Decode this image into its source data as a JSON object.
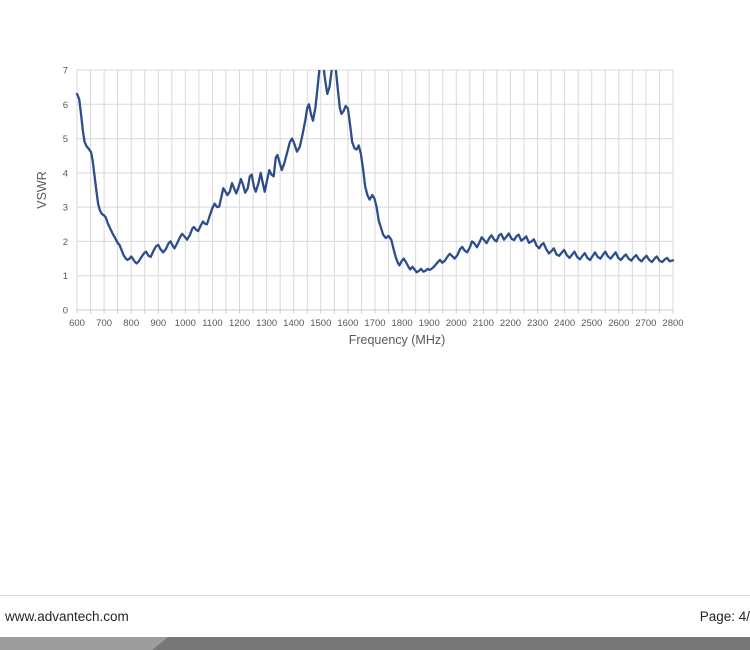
{
  "footer": {
    "website": "www.advantech.com",
    "page_label": "Page: 4/"
  },
  "footer_bar": {
    "light_color": "#9d9d9d",
    "dark_color": "#777777"
  },
  "chart_data": {
    "type": "line",
    "title": "",
    "xlabel": "Frequency (MHz)",
    "ylabel": "VSWR",
    "xlim": [
      600,
      2800
    ],
    "ylim": [
      0,
      7
    ],
    "x_ticks": [
      600,
      700,
      800,
      900,
      1000,
      1100,
      1200,
      1300,
      1400,
      1500,
      1600,
      1700,
      1800,
      1900,
      2000,
      2100,
      2200,
      2300,
      2400,
      2500,
      2600,
      2700,
      2800
    ],
    "y_ticks": [
      0,
      1,
      2,
      3,
      4,
      5,
      6,
      7
    ],
    "x_minor_grid_mhz": 50,
    "grid": true,
    "legend": "none",
    "line_color": "#2e4d8b",
    "grid_color": "#d9d9d9",
    "axis_color": "#c9c9c9",
    "tick_label_color": "#595959",
    "note": "curve is clipped at VSWR 7 near 1500-1560 MHz",
    "series": [
      {
        "name": "VSWR",
        "points": [
          [
            600,
            6.3
          ],
          [
            608,
            6.15
          ],
          [
            615,
            5.7
          ],
          [
            622,
            5.2
          ],
          [
            628,
            4.9
          ],
          [
            635,
            4.78
          ],
          [
            645,
            4.68
          ],
          [
            652,
            4.6
          ],
          [
            658,
            4.35
          ],
          [
            665,
            3.9
          ],
          [
            672,
            3.45
          ],
          [
            678,
            3.1
          ],
          [
            685,
            2.9
          ],
          [
            692,
            2.8
          ],
          [
            700,
            2.76
          ],
          [
            706,
            2.7
          ],
          [
            714,
            2.52
          ],
          [
            722,
            2.38
          ],
          [
            732,
            2.22
          ],
          [
            742,
            2.08
          ],
          [
            750,
            1.96
          ],
          [
            757,
            1.9
          ],
          [
            764,
            1.76
          ],
          [
            772,
            1.6
          ],
          [
            780,
            1.5
          ],
          [
            786,
            1.46
          ],
          [
            794,
            1.5
          ],
          [
            800,
            1.56
          ],
          [
            806,
            1.5
          ],
          [
            814,
            1.4
          ],
          [
            820,
            1.36
          ],
          [
            828,
            1.42
          ],
          [
            838,
            1.55
          ],
          [
            848,
            1.66
          ],
          [
            855,
            1.7
          ],
          [
            864,
            1.58
          ],
          [
            872,
            1.55
          ],
          [
            882,
            1.72
          ],
          [
            892,
            1.86
          ],
          [
            900,
            1.9
          ],
          [
            908,
            1.78
          ],
          [
            918,
            1.68
          ],
          [
            928,
            1.78
          ],
          [
            938,
            1.95
          ],
          [
            945,
            2.0
          ],
          [
            953,
            1.88
          ],
          [
            960,
            1.8
          ],
          [
            970,
            1.95
          ],
          [
            980,
            2.12
          ],
          [
            988,
            2.22
          ],
          [
            997,
            2.14
          ],
          [
            1006,
            2.05
          ],
          [
            1016,
            2.18
          ],
          [
            1026,
            2.38
          ],
          [
            1032,
            2.42
          ],
          [
            1040,
            2.34
          ],
          [
            1047,
            2.3
          ],
          [
            1056,
            2.45
          ],
          [
            1065,
            2.58
          ],
          [
            1072,
            2.52
          ],
          [
            1080,
            2.5
          ],
          [
            1090,
            2.75
          ],
          [
            1100,
            2.98
          ],
          [
            1108,
            3.1
          ],
          [
            1117,
            3.0
          ],
          [
            1125,
            3.02
          ],
          [
            1133,
            3.3
          ],
          [
            1140,
            3.55
          ],
          [
            1148,
            3.45
          ],
          [
            1155,
            3.35
          ],
          [
            1164,
            3.45
          ],
          [
            1172,
            3.7
          ],
          [
            1180,
            3.55
          ],
          [
            1188,
            3.4
          ],
          [
            1197,
            3.6
          ],
          [
            1205,
            3.82
          ],
          [
            1213,
            3.65
          ],
          [
            1221,
            3.42
          ],
          [
            1230,
            3.55
          ],
          [
            1238,
            3.9
          ],
          [
            1245,
            3.95
          ],
          [
            1253,
            3.6
          ],
          [
            1260,
            3.45
          ],
          [
            1270,
            3.7
          ],
          [
            1278,
            4.0
          ],
          [
            1286,
            3.7
          ],
          [
            1293,
            3.45
          ],
          [
            1302,
            3.8
          ],
          [
            1310,
            4.08
          ],
          [
            1318,
            3.95
          ],
          [
            1326,
            3.9
          ],
          [
            1334,
            4.45
          ],
          [
            1340,
            4.52
          ],
          [
            1348,
            4.3
          ],
          [
            1356,
            4.08
          ],
          [
            1366,
            4.3
          ],
          [
            1376,
            4.6
          ],
          [
            1386,
            4.9
          ],
          [
            1394,
            5.0
          ],
          [
            1402,
            4.85
          ],
          [
            1412,
            4.62
          ],
          [
            1422,
            4.75
          ],
          [
            1432,
            5.1
          ],
          [
            1442,
            5.5
          ],
          [
            1450,
            5.9
          ],
          [
            1456,
            6.0
          ],
          [
            1464,
            5.7
          ],
          [
            1471,
            5.52
          ],
          [
            1480,
            5.9
          ],
          [
            1488,
            6.5
          ],
          [
            1496,
            7.1
          ],
          [
            1502,
            7.3
          ],
          [
            1508,
            7.2
          ],
          [
            1516,
            6.7
          ],
          [
            1524,
            6.3
          ],
          [
            1532,
            6.5
          ],
          [
            1540,
            7.0
          ],
          [
            1547,
            7.3
          ],
          [
            1554,
            7.15
          ],
          [
            1562,
            6.5
          ],
          [
            1570,
            5.9
          ],
          [
            1576,
            5.72
          ],
          [
            1584,
            5.8
          ],
          [
            1592,
            5.95
          ],
          [
            1600,
            5.88
          ],
          [
            1608,
            5.4
          ],
          [
            1616,
            4.9
          ],
          [
            1624,
            4.72
          ],
          [
            1632,
            4.68
          ],
          [
            1640,
            4.8
          ],
          [
            1648,
            4.55
          ],
          [
            1656,
            4.1
          ],
          [
            1664,
            3.6
          ],
          [
            1672,
            3.35
          ],
          [
            1680,
            3.22
          ],
          [
            1690,
            3.35
          ],
          [
            1698,
            3.25
          ],
          [
            1706,
            3.0
          ],
          [
            1714,
            2.6
          ],
          [
            1722,
            2.4
          ],
          [
            1730,
            2.2
          ],
          [
            1740,
            2.1
          ],
          [
            1750,
            2.16
          ],
          [
            1760,
            2.05
          ],
          [
            1768,
            1.8
          ],
          [
            1776,
            1.55
          ],
          [
            1784,
            1.38
          ],
          [
            1790,
            1.3
          ],
          [
            1798,
            1.42
          ],
          [
            1806,
            1.5
          ],
          [
            1814,
            1.4
          ],
          [
            1822,
            1.28
          ],
          [
            1830,
            1.18
          ],
          [
            1838,
            1.26
          ],
          [
            1846,
            1.18
          ],
          [
            1854,
            1.1
          ],
          [
            1862,
            1.14
          ],
          [
            1870,
            1.2
          ],
          [
            1878,
            1.12
          ],
          [
            1886,
            1.14
          ],
          [
            1894,
            1.2
          ],
          [
            1902,
            1.17
          ],
          [
            1912,
            1.22
          ],
          [
            1922,
            1.3
          ],
          [
            1932,
            1.4
          ],
          [
            1940,
            1.46
          ],
          [
            1948,
            1.38
          ],
          [
            1958,
            1.44
          ],
          [
            1968,
            1.56
          ],
          [
            1976,
            1.64
          ],
          [
            1984,
            1.58
          ],
          [
            1994,
            1.5
          ],
          [
            2004,
            1.6
          ],
          [
            2014,
            1.78
          ],
          [
            2022,
            1.84
          ],
          [
            2030,
            1.74
          ],
          [
            2040,
            1.68
          ],
          [
            2050,
            1.82
          ],
          [
            2058,
            2.0
          ],
          [
            2066,
            1.95
          ],
          [
            2076,
            1.83
          ],
          [
            2086,
            1.98
          ],
          [
            2094,
            2.12
          ],
          [
            2102,
            2.05
          ],
          [
            2112,
            1.95
          ],
          [
            2122,
            2.1
          ],
          [
            2130,
            2.18
          ],
          [
            2140,
            2.05
          ],
          [
            2148,
            2.0
          ],
          [
            2158,
            2.18
          ],
          [
            2166,
            2.22
          ],
          [
            2176,
            2.05
          ],
          [
            2186,
            2.15
          ],
          [
            2194,
            2.23
          ],
          [
            2204,
            2.08
          ],
          [
            2214,
            2.04
          ],
          [
            2222,
            2.15
          ],
          [
            2230,
            2.2
          ],
          [
            2240,
            2.02
          ],
          [
            2250,
            2.08
          ],
          [
            2258,
            2.15
          ],
          [
            2268,
            1.96
          ],
          [
            2278,
            2.0
          ],
          [
            2286,
            2.06
          ],
          [
            2296,
            1.88
          ],
          [
            2306,
            1.8
          ],
          [
            2314,
            1.9
          ],
          [
            2322,
            1.95
          ],
          [
            2332,
            1.78
          ],
          [
            2342,
            1.65
          ],
          [
            2352,
            1.72
          ],
          [
            2360,
            1.8
          ],
          [
            2370,
            1.62
          ],
          [
            2380,
            1.58
          ],
          [
            2390,
            1.68
          ],
          [
            2398,
            1.75
          ],
          [
            2408,
            1.6
          ],
          [
            2418,
            1.52
          ],
          [
            2428,
            1.62
          ],
          [
            2436,
            1.7
          ],
          [
            2446,
            1.55
          ],
          [
            2456,
            1.48
          ],
          [
            2466,
            1.58
          ],
          [
            2474,
            1.66
          ],
          [
            2484,
            1.52
          ],
          [
            2494,
            1.46
          ],
          [
            2504,
            1.58
          ],
          [
            2512,
            1.68
          ],
          [
            2522,
            1.55
          ],
          [
            2532,
            1.5
          ],
          [
            2542,
            1.62
          ],
          [
            2550,
            1.7
          ],
          [
            2560,
            1.56
          ],
          [
            2570,
            1.5
          ],
          [
            2580,
            1.6
          ],
          [
            2588,
            1.68
          ],
          [
            2598,
            1.52
          ],
          [
            2608,
            1.46
          ],
          [
            2618,
            1.56
          ],
          [
            2626,
            1.62
          ],
          [
            2636,
            1.5
          ],
          [
            2646,
            1.44
          ],
          [
            2656,
            1.54
          ],
          [
            2664,
            1.6
          ],
          [
            2674,
            1.48
          ],
          [
            2684,
            1.42
          ],
          [
            2694,
            1.52
          ],
          [
            2702,
            1.58
          ],
          [
            2712,
            1.46
          ],
          [
            2722,
            1.4
          ],
          [
            2732,
            1.5
          ],
          [
            2740,
            1.56
          ],
          [
            2750,
            1.44
          ],
          [
            2760,
            1.4
          ],
          [
            2770,
            1.48
          ],
          [
            2778,
            1.52
          ],
          [
            2788,
            1.42
          ],
          [
            2800,
            1.45
          ]
        ]
      }
    ]
  }
}
